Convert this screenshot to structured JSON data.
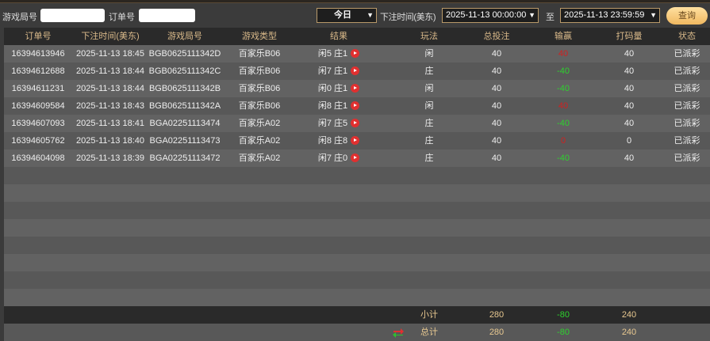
{
  "filter": {
    "game_round_label": "游戏局号",
    "game_round_value": "",
    "order_label": "订单号",
    "order_value": "",
    "period": "今日",
    "time_label": "下注时间(美东)",
    "start": "2025-11-13 00:00:00",
    "to_label": "至",
    "end": "2025-11-13 23:59:59",
    "query": "查询"
  },
  "columns": [
    "订单号",
    "下注时间(美东)",
    "游戏局号",
    "游戏类型",
    "结果",
    "玩法",
    "总投注",
    "输赢",
    "打码量",
    "状态"
  ],
  "rows": [
    [
      "16394613946",
      "2025-11-13 18:45",
      "BGB0625111342D",
      "百家乐B06",
      "闲5 庄1",
      "闲",
      "40",
      "40",
      "40",
      "已派彩"
    ],
    [
      "16394612688",
      "2025-11-13 18:44",
      "BGB0625111342C",
      "百家乐B06",
      "闲7 庄1",
      "庄",
      "40",
      "-40",
      "40",
      "已派彩"
    ],
    [
      "16394611231",
      "2025-11-13 18:44",
      "BGB0625111342B",
      "百家乐B06",
      "闲0 庄1",
      "闲",
      "40",
      "-40",
      "40",
      "已派彩"
    ],
    [
      "16394609584",
      "2025-11-13 18:43",
      "BGB0625111342A",
      "百家乐B06",
      "闲8 庄1",
      "闲",
      "40",
      "40",
      "40",
      "已派彩"
    ],
    [
      "16394607093",
      "2025-11-13 18:41",
      "BGA02251113474",
      "百家乐A02",
      "闲7 庄5",
      "庄",
      "40",
      "-40",
      "40",
      "已派彩"
    ],
    [
      "16394605762",
      "2025-11-13 18:40",
      "BGA02251113473",
      "百家乐A02",
      "闲8 庄8",
      "庄",
      "40",
      "0",
      "0",
      "已派彩"
    ],
    [
      "16394604098",
      "2025-11-13 18:39",
      "BGA02251113472",
      "百家乐A02",
      "闲7 庄0",
      "庄",
      "40",
      "-40",
      "40",
      "已派彩"
    ]
  ],
  "subtotal": {
    "label": "小计",
    "bet": "280",
    "winloss": "-80",
    "valid": "240"
  },
  "total": {
    "label": "总计",
    "bet": "280",
    "winloss": "-80",
    "valid": "240"
  },
  "colors": {
    "header_text": "#d9b98a",
    "win": "#d02020",
    "loss": "#2ed12e",
    "button": "#f0b860"
  }
}
